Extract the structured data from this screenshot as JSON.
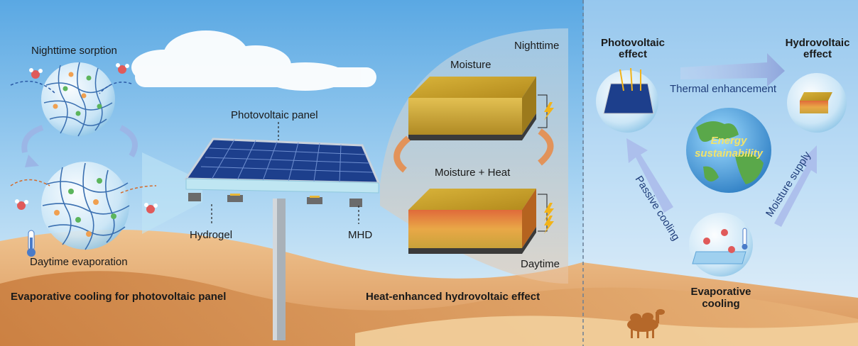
{
  "labels": {
    "nighttime_sorption": "Nighttime sorption",
    "daytime_evaporation": "Daytime evaporation",
    "evaporative_cooling_pv": "Evaporative cooling for photovoltaic panel",
    "photovoltaic_panel": "Photovoltaic panel",
    "hydrogel": "Hydrogel",
    "mhd": "MHD",
    "moisture": "Moisture",
    "nighttime": "Nighttime",
    "moisture_heat": "Moisture + Heat",
    "daytime": "Daytime",
    "heat_enhanced": "Heat-enhanced hydrovoltaic effect",
    "photovoltaic_effect_1": "Photovoltaic",
    "photovoltaic_effect_2": "effect",
    "hydrovoltaic_effect_1": "Hydrovoltaic",
    "hydrovoltaic_effect_2": "effect",
    "thermal_enhancement": "Thermal enhancement",
    "energy": "Energy",
    "sustainability": "sustainability",
    "passive_cooling": "Passive cooling",
    "moisture_supply": "Moisture supply",
    "evaporative_1": "Evaporative",
    "evaporative_2": "cooling"
  },
  "colors": {
    "sky_top": "#6fb3e6",
    "sand": "#e0a868",
    "panel": "#1d3f8c",
    "hydrovoltaic_top": "#c9a227",
    "arrow_blue": "#9bb0e0"
  }
}
